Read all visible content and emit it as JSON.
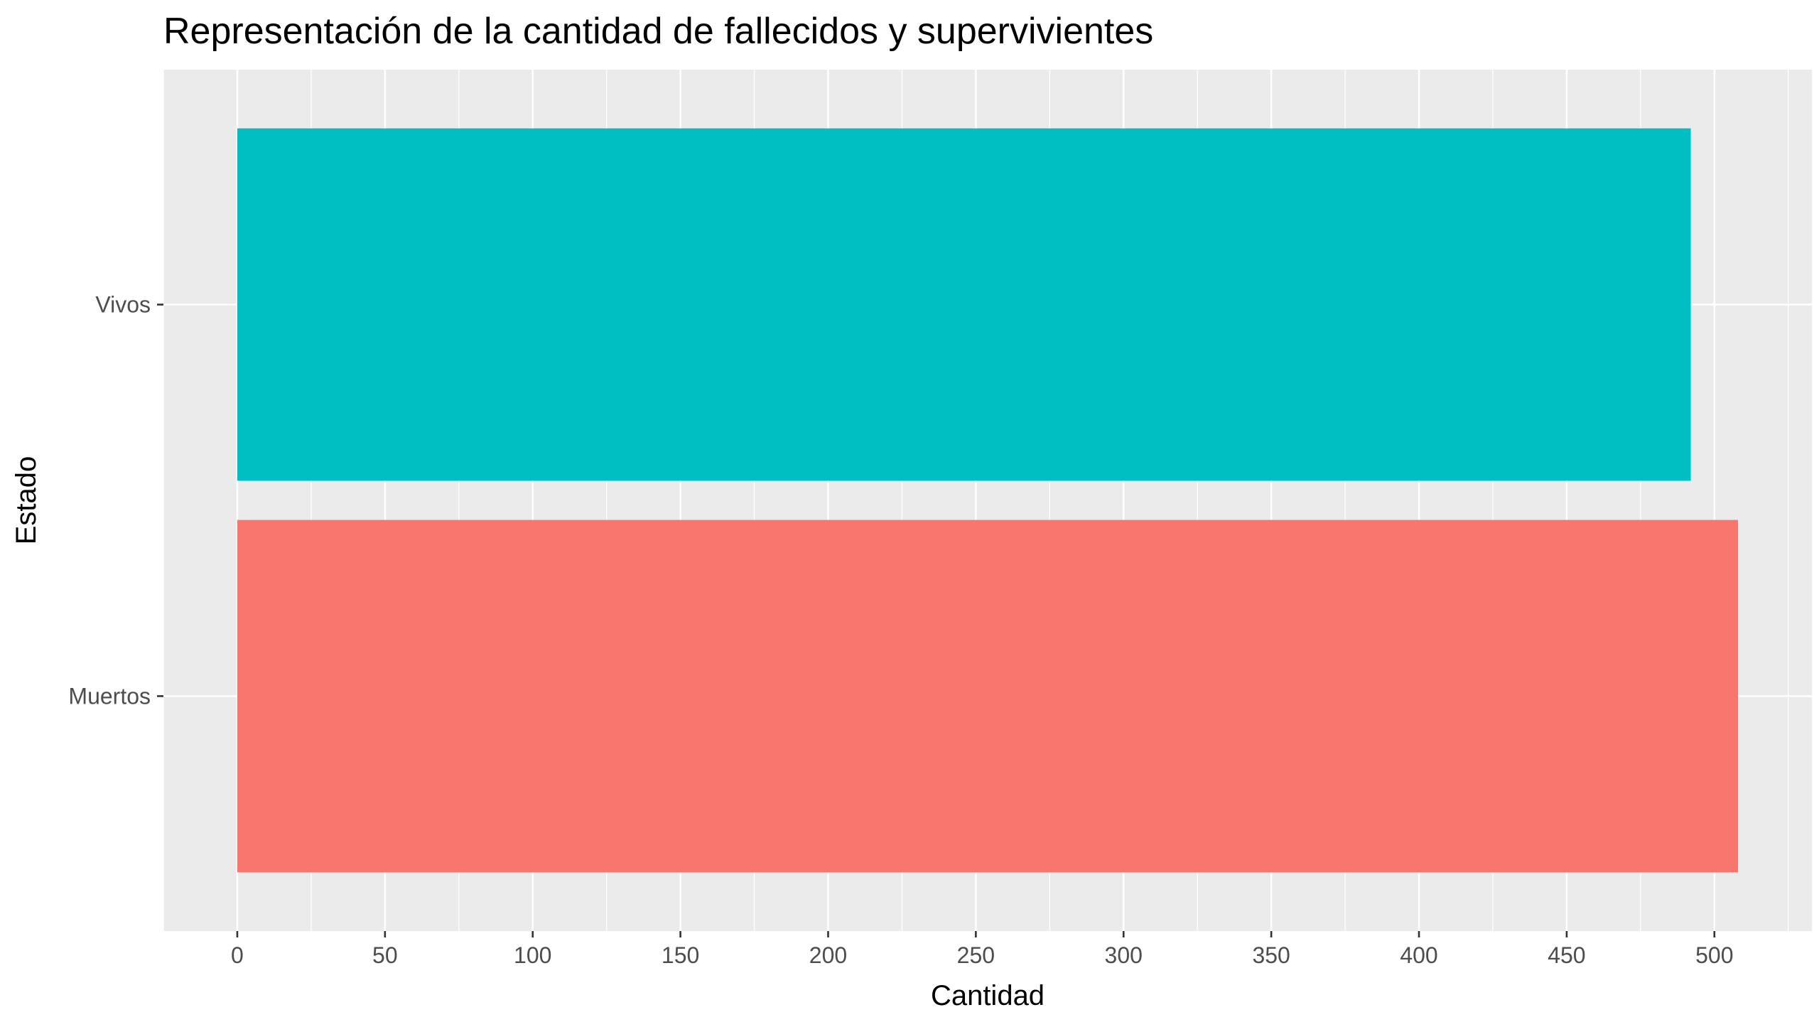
{
  "chart_data": {
    "type": "bar",
    "orientation": "horizontal",
    "title": "Representación de la cantidad de fallecidos y supervivientes",
    "xlabel": "Cantidad",
    "ylabel": "Estado",
    "categories": [
      "Muertos",
      "Vivos"
    ],
    "values": [
      508,
      492
    ],
    "colors": [
      "#F8766D",
      "#00BFC4"
    ],
    "xlim": [
      -25,
      533
    ],
    "x_ticks": [
      0,
      50,
      100,
      150,
      200,
      250,
      300,
      350,
      400,
      450,
      500
    ],
    "x_tick_labels": [
      "0",
      "50",
      "100",
      "150",
      "200",
      "250",
      "300",
      "350",
      "400",
      "450",
      "500"
    ],
    "grid": true,
    "legend": "none",
    "panel_background": "#EBEBEB",
    "grid_color": "#FFFFFF",
    "text_color": "#000000",
    "tick_label_color": "#4D4D4D",
    "tick_color": "#333333"
  }
}
